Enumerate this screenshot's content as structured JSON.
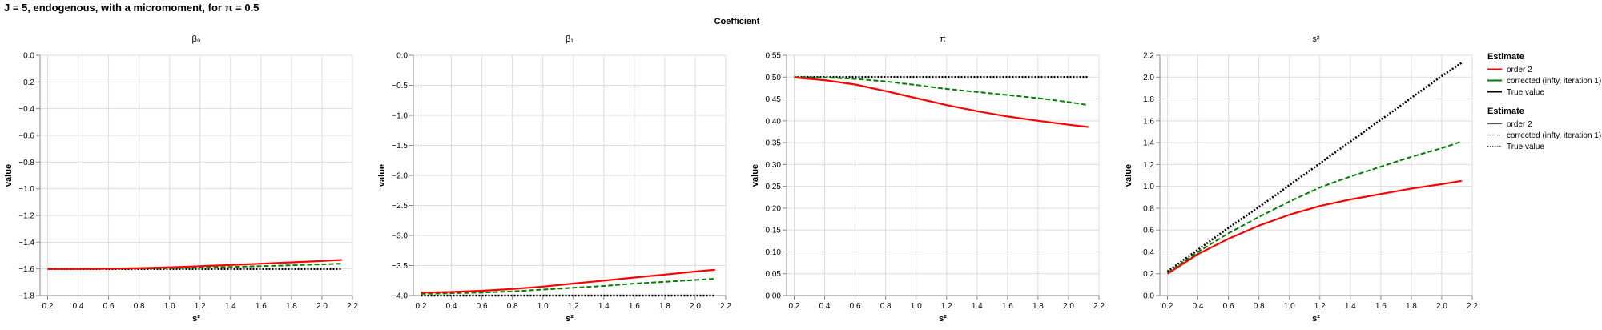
{
  "title": "J = 5, endogenous, with a micromoment,  for π = 0.5",
  "facet_header": "Coefficient",
  "colors": {
    "order_2": "#ff0000",
    "corrected": "#008000",
    "true_value": "#000000",
    "grid": "#dddddd",
    "axis": "#888888"
  },
  "legends": [
    {
      "title": "Estimate",
      "kind": "color",
      "items": [
        {
          "label": "order 2",
          "color": "#ff0000"
        },
        {
          "label": "corrected (infty, iteration 1)",
          "color": "#008000"
        },
        {
          "label": "True value",
          "color": "#000000"
        }
      ]
    },
    {
      "title": "Estimate",
      "kind": "dash",
      "items": [
        {
          "label": "order 2",
          "dash": "solid"
        },
        {
          "label": "corrected (infty, iteration 1)",
          "dash": "dashed"
        },
        {
          "label": "True value",
          "dash": "dotted"
        }
      ]
    }
  ],
  "chart_data": [
    {
      "type": "line",
      "title": "β₀",
      "xlabel": "s²",
      "ylabel": "value",
      "xlim": [
        0.15,
        2.2
      ],
      "ylim": [
        -1.8,
        0.0
      ],
      "xticks": [
        "0.2",
        "0.4",
        "0.6",
        "0.8",
        "1.0",
        "1.2",
        "1.4",
        "1.6",
        "1.8",
        "2.0",
        "2.2"
      ],
      "yticks": [
        "0.0",
        "−0.2",
        "−0.4",
        "−0.6",
        "−0.8",
        "−1.0",
        "−1.2",
        "−1.4",
        "−1.6",
        "−1.8"
      ],
      "grid": true,
      "x": [
        0.2,
        0.4,
        0.6,
        0.8,
        1.0,
        1.2,
        1.4,
        1.6,
        1.8,
        2.0,
        2.13
      ],
      "series": [
        {
          "name": "order 2",
          "style": "solid",
          "color": "#ff0000",
          "values": [
            -1.6,
            -1.6,
            -1.598,
            -1.594,
            -1.588,
            -1.58,
            -1.571,
            -1.561,
            -1.551,
            -1.541,
            -1.533
          ]
        },
        {
          "name": "corrected (infty, iteration 1)",
          "style": "dashed",
          "color": "#008000",
          "values": [
            -1.6,
            -1.6,
            -1.599,
            -1.597,
            -1.594,
            -1.59,
            -1.585,
            -1.579,
            -1.573,
            -1.566,
            -1.561
          ]
        },
        {
          "name": "True value",
          "style": "dotted",
          "color": "#000000",
          "values": [
            -1.6,
            -1.6,
            -1.6,
            -1.6,
            -1.6,
            -1.6,
            -1.6,
            -1.6,
            -1.6,
            -1.6,
            -1.6
          ]
        }
      ]
    },
    {
      "type": "line",
      "title": "β₁",
      "xlabel": "s²",
      "ylabel": "value",
      "xlim": [
        0.15,
        2.2
      ],
      "ylim": [
        -4.0,
        0.0
      ],
      "xticks": [
        "0.2",
        "0.4",
        "0.6",
        "0.8",
        "1.0",
        "1.2",
        "1.4",
        "1.6",
        "1.8",
        "2.0",
        "2.2"
      ],
      "yticks": [
        "0.0",
        "−0.5",
        "−1.0",
        "−1.5",
        "−2.0",
        "−2.5",
        "−3.0",
        "−3.5",
        "−4.0"
      ],
      "grid": true,
      "x": [
        0.2,
        0.4,
        0.6,
        0.8,
        1.0,
        1.2,
        1.4,
        1.6,
        1.8,
        2.0,
        2.13
      ],
      "series": [
        {
          "name": "order 2",
          "style": "solid",
          "color": "#ff0000",
          "values": [
            -3.95,
            -3.94,
            -3.92,
            -3.89,
            -3.85,
            -3.8,
            -3.75,
            -3.7,
            -3.65,
            -3.6,
            -3.57
          ]
        },
        {
          "name": "corrected (infty, iteration 1)",
          "style": "dashed",
          "color": "#008000",
          "values": [
            -3.97,
            -3.96,
            -3.95,
            -3.93,
            -3.9,
            -3.87,
            -3.84,
            -3.8,
            -3.77,
            -3.74,
            -3.72
          ]
        },
        {
          "name": "True value",
          "style": "dotted",
          "color": "#000000",
          "values": [
            -4.0,
            -4.0,
            -4.0,
            -4.0,
            -4.0,
            -4.0,
            -4.0,
            -4.0,
            -4.0,
            -4.0,
            -4.0
          ]
        }
      ]
    },
    {
      "type": "line",
      "title": "π",
      "xlabel": "s²",
      "ylabel": "value",
      "xlim": [
        0.15,
        2.2
      ],
      "ylim": [
        0.0,
        0.55
      ],
      "xticks": [
        "0.2",
        "0.4",
        "0.6",
        "0.8",
        "1.0",
        "1.2",
        "1.4",
        "1.6",
        "1.8",
        "2.0",
        "2.2"
      ],
      "yticks": [
        "0.55",
        "0.50",
        "0.45",
        "0.40",
        "0.35",
        "0.30",
        "0.25",
        "0.20",
        "0.15",
        "0.10",
        "0.05",
        "0.00"
      ],
      "grid": true,
      "x": [
        0.2,
        0.4,
        0.6,
        0.8,
        1.0,
        1.2,
        1.4,
        1.6,
        1.8,
        2.0,
        2.13
      ],
      "series": [
        {
          "name": "order 2",
          "style": "solid",
          "color": "#ff0000",
          "values": [
            0.499,
            0.493,
            0.483,
            0.468,
            0.452,
            0.436,
            0.422,
            0.41,
            0.4,
            0.391,
            0.386
          ]
        },
        {
          "name": "corrected (infty, iteration 1)",
          "style": "dashed",
          "color": "#008000",
          "values": [
            0.5,
            0.499,
            0.496,
            0.49,
            0.482,
            0.473,
            0.466,
            0.459,
            0.452,
            0.443,
            0.436
          ]
        },
        {
          "name": "True value",
          "style": "dotted",
          "color": "#000000",
          "values": [
            0.5,
            0.5,
            0.5,
            0.5,
            0.5,
            0.5,
            0.5,
            0.5,
            0.5,
            0.5,
            0.5
          ]
        }
      ]
    },
    {
      "type": "line",
      "title": "s²",
      "xlabel": "s²",
      "ylabel": "value",
      "xlim": [
        0.15,
        2.2
      ],
      "ylim": [
        0.0,
        2.2
      ],
      "xticks": [
        "0.2",
        "0.4",
        "0.6",
        "0.8",
        "1.0",
        "1.2",
        "1.4",
        "1.6",
        "1.8",
        "2.0",
        "2.2"
      ],
      "yticks": [
        "2.2",
        "2.0",
        "1.8",
        "1.6",
        "1.4",
        "1.2",
        "1.0",
        "0.8",
        "0.6",
        "0.4",
        "0.2",
        "0.0"
      ],
      "grid": true,
      "x": [
        0.2,
        0.4,
        0.6,
        0.8,
        1.0,
        1.2,
        1.4,
        1.6,
        1.8,
        2.0,
        2.13
      ],
      "series": [
        {
          "name": "order 2",
          "style": "solid",
          "color": "#ff0000",
          "values": [
            0.2,
            0.38,
            0.52,
            0.64,
            0.74,
            0.82,
            0.88,
            0.93,
            0.98,
            1.02,
            1.05
          ]
        },
        {
          "name": "corrected (infty, iteration 1)",
          "style": "dashed",
          "color": "#008000",
          "values": [
            0.21,
            0.4,
            0.57,
            0.72,
            0.86,
            0.99,
            1.09,
            1.18,
            1.27,
            1.35,
            1.41
          ]
        },
        {
          "name": "True value",
          "style": "dotted",
          "color": "#000000",
          "values": [
            0.22,
            0.42,
            0.62,
            0.81,
            1.01,
            1.21,
            1.41,
            1.61,
            1.81,
            2.01,
            2.13
          ]
        }
      ]
    }
  ]
}
